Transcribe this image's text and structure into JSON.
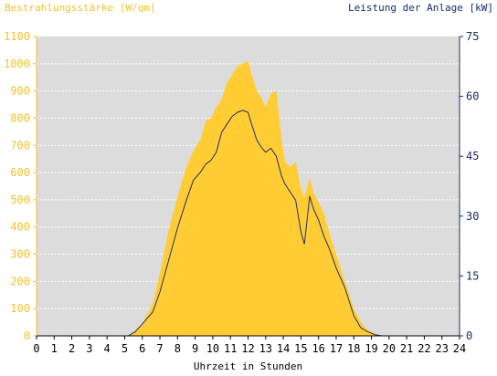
{
  "chart_data": {
    "type": "area",
    "title": "",
    "xlabel": "Uhrzeit in Stunden",
    "ylabel_left": "Bestrahlungsstärke [W/qm]",
    "ylabel_right": "Leistung der Anlage [kW]",
    "xlim": [
      0,
      24
    ],
    "ylim_left": [
      0,
      1100
    ],
    "ylim_right": [
      0,
      75
    ],
    "x_ticks": [
      "0",
      "1",
      "2",
      "3",
      "4",
      "5",
      "6",
      "7",
      "8",
      "9",
      "10",
      "11",
      "12",
      "13",
      "14",
      "15",
      "16",
      "17",
      "18",
      "19",
      "20",
      "21",
      "22",
      "23",
      "24"
    ],
    "y_ticks_left": [
      "0",
      "100",
      "200",
      "300",
      "400",
      "500",
      "600",
      "700",
      "800",
      "900",
      "1000",
      "1100"
    ],
    "y_ticks_right": [
      "0",
      "15",
      "30",
      "45",
      "60",
      "75"
    ],
    "grid": true,
    "colors": {
      "irradiance": "#ffcc33",
      "power": "#1f2f6f",
      "plot_background": "#dcdcdc",
      "left_axis_text": "#f2c12e",
      "right_axis_text": "#1a2a6c",
      "grid": "#ffffff"
    },
    "series": [
      {
        "name": "Bestrahlungsstärke [W/qm]",
        "axis": "left",
        "kind": "area",
        "x": [
          0,
          5.2,
          5.6,
          6.0,
          6.3,
          6.6,
          7.0,
          7.5,
          8.0,
          8.5,
          8.9,
          9.3,
          9.6,
          9.9,
          10.2,
          10.5,
          10.8,
          11.1,
          11.4,
          11.7,
          12.0,
          12.2,
          12.5,
          12.8,
          13.0,
          13.3,
          13.6,
          13.9,
          14.1,
          14.4,
          14.7,
          15.0,
          15.2,
          15.5,
          15.7,
          16.0,
          16.3,
          16.6,
          17.0,
          17.5,
          18.0,
          18.4,
          18.8,
          19.2,
          19.6,
          20.0,
          24
        ],
        "values": [
          0,
          0,
          20,
          45,
          80,
          120,
          230,
          390,
          510,
          620,
          680,
          720,
          790,
          800,
          840,
          870,
          930,
          960,
          990,
          1000,
          1010,
          960,
          900,
          870,
          840,
          890,
          900,
          720,
          640,
          620,
          640,
          540,
          510,
          580,
          530,
          490,
          450,
          380,
          300,
          200,
          100,
          50,
          20,
          8,
          0,
          0,
          0
        ]
      },
      {
        "name": "Leistung der Anlage [kW]",
        "axis": "right",
        "kind": "line",
        "x": [
          0,
          5.2,
          5.6,
          6.0,
          6.3,
          6.6,
          7.0,
          7.5,
          8.0,
          8.5,
          8.9,
          9.3,
          9.6,
          9.9,
          10.2,
          10.5,
          10.8,
          11.1,
          11.4,
          11.7,
          12.0,
          12.2,
          12.5,
          12.8,
          13.0,
          13.3,
          13.6,
          13.9,
          14.1,
          14.4,
          14.7,
          15.0,
          15.2,
          15.5,
          15.7,
          16.0,
          16.3,
          16.6,
          17.0,
          17.5,
          18.0,
          18.4,
          18.8,
          19.2,
          19.6,
          20.0,
          24
        ],
        "values": [
          0,
          0,
          1,
          3,
          4.5,
          6,
          11,
          19,
          27,
          34,
          39,
          41,
          43,
          44,
          46,
          51,
          53,
          55,
          56,
          56.5,
          56,
          53,
          49,
          47,
          46,
          47,
          45,
          40,
          38,
          36,
          34,
          26,
          23,
          35,
          32,
          29,
          25,
          22,
          17,
          12,
          5,
          2,
          1,
          0.3,
          0,
          0,
          0
        ]
      }
    ]
  }
}
